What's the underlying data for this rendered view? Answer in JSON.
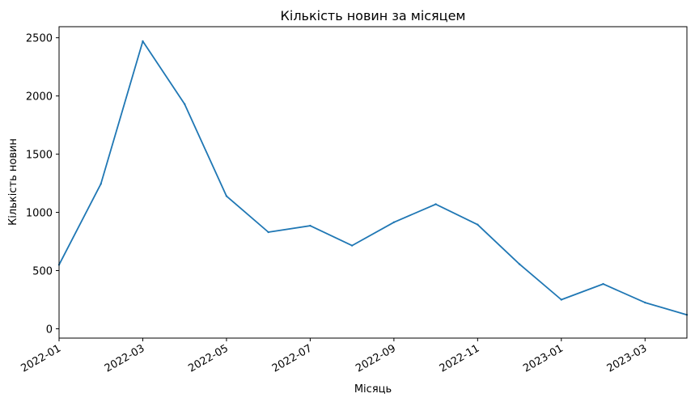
{
  "chart_data": {
    "type": "line",
    "title": "Кількість новин за місяцем",
    "xlabel": "Місяць",
    "ylabel": "Кількість новин",
    "x": [
      "2022-01",
      "2022-02",
      "2022-03",
      "2022-04",
      "2022-05",
      "2022-06",
      "2022-07",
      "2022-08",
      "2022-09",
      "2022-10",
      "2022-11",
      "2022-12",
      "2023-01",
      "2023-02",
      "2023-03",
      "2023-04"
    ],
    "series": [
      {
        "values": [
          550,
          1245,
          2470,
          1930,
          1140,
          830,
          885,
          715,
          915,
          1070,
          895,
          555,
          250,
          385,
          225,
          120
        ],
        "color": "#1f77b4"
      }
    ],
    "xlim": [
      "2022-01",
      "2023-04"
    ],
    "ylim": [
      -80,
      2595
    ],
    "yticks": [
      0,
      500,
      1000,
      1500,
      2000,
      2500
    ],
    "xticks": [
      "2022-01",
      "2022-03",
      "2022-05",
      "2022-07",
      "2022-09",
      "2022-11",
      "2023-01",
      "2023-03"
    ],
    "grid": false,
    "legend": "none"
  }
}
